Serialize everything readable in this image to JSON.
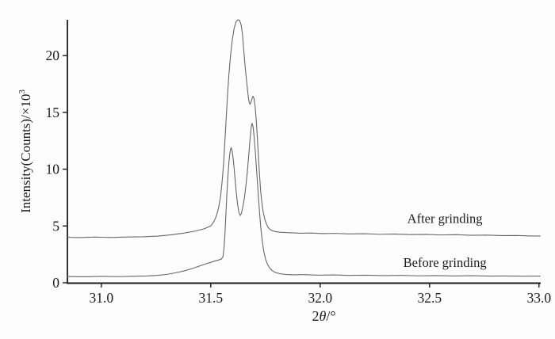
{
  "figure": {
    "background": "#fdfdfd",
    "axis_color": "#1c1c1c",
    "curve_color": "#676767",
    "ylabel_main": "Intensity(Counts)/×10",
    "ylabel_sup": "3",
    "xlabel_parts": [
      {
        "text": "2",
        "italic": false
      },
      {
        "text": "θ",
        "italic": true
      },
      {
        "text": "/°",
        "italic": false
      }
    ]
  },
  "chart_data": {
    "type": "line",
    "title": "",
    "xlabel": "2θ/°",
    "ylabel": "Intensity(Counts)/×10³",
    "xlim": [
      30.845,
      33.008
    ],
    "ylim": [
      0,
      23.15
    ],
    "grid": false,
    "legend_position": "inline-annotations-right",
    "xticks": {
      "values": [
        31.0,
        31.5,
        32.0,
        32.5,
        33.0
      ],
      "labels": [
        "31.0",
        "31.5",
        "32.0",
        "32.5",
        "33.0"
      ]
    },
    "yticks": {
      "values": [
        0,
        5,
        10,
        15,
        20
      ],
      "labels": [
        "0",
        "5",
        "10",
        "15",
        "20"
      ]
    },
    "annotations": [
      {
        "id": "after-grinding-label",
        "text": "After grinding",
        "x": 32.57,
        "y": 5.7
      },
      {
        "id": "before-grinding-label",
        "text": "Before grinding",
        "x": 32.57,
        "y": 1.8
      }
    ],
    "series": [
      {
        "name": "After grinding",
        "baseline": 4.0,
        "peak_summary": {
          "main_peak_2theta": 31.62,
          "main_peak_intensity": 23.15,
          "shoulder_2theta": 31.69,
          "shoulder_intensity": 16.4
        },
        "points": [
          [
            30.845,
            4.0
          ],
          [
            30.9,
            3.98
          ],
          [
            30.97,
            4.02
          ],
          [
            31.05,
            3.99
          ],
          [
            31.12,
            4.03
          ],
          [
            31.19,
            4.05
          ],
          [
            31.26,
            4.11
          ],
          [
            31.32,
            4.22
          ],
          [
            31.38,
            4.38
          ],
          [
            31.43,
            4.55
          ],
          [
            31.47,
            4.75
          ],
          [
            31.5,
            5.0
          ],
          [
            31.515,
            5.4
          ],
          [
            31.527,
            5.95
          ],
          [
            31.537,
            6.7
          ],
          [
            31.545,
            7.6
          ],
          [
            31.552,
            8.9
          ],
          [
            31.559,
            10.5
          ],
          [
            31.565,
            12.6
          ],
          [
            31.571,
            14.6
          ],
          [
            31.577,
            16.6
          ],
          [
            31.583,
            18.3
          ],
          [
            31.59,
            19.9
          ],
          [
            31.598,
            21.3
          ],
          [
            31.607,
            22.4
          ],
          [
            31.616,
            23.0
          ],
          [
            31.624,
            23.15
          ],
          [
            31.632,
            23.1
          ],
          [
            31.639,
            22.7
          ],
          [
            31.645,
            21.9
          ],
          [
            31.65,
            20.7
          ],
          [
            31.655,
            19.5
          ],
          [
            31.661,
            18.3
          ],
          [
            31.667,
            17.2
          ],
          [
            31.672,
            16.3
          ],
          [
            31.676,
            15.85
          ],
          [
            31.68,
            15.72
          ],
          [
            31.685,
            15.95
          ],
          [
            31.69,
            16.3
          ],
          [
            31.694,
            16.42
          ],
          [
            31.698,
            16.2
          ],
          [
            31.703,
            15.5
          ],
          [
            31.708,
            14.3
          ],
          [
            31.713,
            12.8
          ],
          [
            31.718,
            11.1
          ],
          [
            31.723,
            9.5
          ],
          [
            31.728,
            8.1
          ],
          [
            31.734,
            7.0
          ],
          [
            31.74,
            6.2
          ],
          [
            31.747,
            5.6
          ],
          [
            31.755,
            5.15
          ],
          [
            31.763,
            4.85
          ],
          [
            31.772,
            4.68
          ],
          [
            31.783,
            4.57
          ],
          [
            31.797,
            4.5
          ],
          [
            31.815,
            4.45
          ],
          [
            31.84,
            4.42
          ],
          [
            31.87,
            4.4
          ],
          [
            31.91,
            4.36
          ],
          [
            31.96,
            4.38
          ],
          [
            32.01,
            4.33
          ],
          [
            32.07,
            4.35
          ],
          [
            32.13,
            4.3
          ],
          [
            32.2,
            4.32
          ],
          [
            32.27,
            4.27
          ],
          [
            32.34,
            4.29
          ],
          [
            32.41,
            4.24
          ],
          [
            32.48,
            4.26
          ],
          [
            32.55,
            4.21
          ],
          [
            32.62,
            4.23
          ],
          [
            32.69,
            4.18
          ],
          [
            32.76,
            4.2
          ],
          [
            32.83,
            4.15
          ],
          [
            32.9,
            4.16
          ],
          [
            32.96,
            4.12
          ],
          [
            33.005,
            4.12
          ]
        ]
      },
      {
        "name": "Before grinding",
        "baseline": 0.55,
        "peak_summary": {
          "peak1_2theta": 31.59,
          "peak1_intensity": 11.9,
          "valley_2theta": 31.63,
          "valley_intensity": 5.9,
          "peak2_2theta": 31.69,
          "peak2_intensity": 14.05
        },
        "points": [
          [
            30.845,
            0.55
          ],
          [
            30.92,
            0.53
          ],
          [
            31.0,
            0.56
          ],
          [
            31.08,
            0.54
          ],
          [
            31.15,
            0.57
          ],
          [
            31.21,
            0.6
          ],
          [
            31.26,
            0.66
          ],
          [
            31.3,
            0.74
          ],
          [
            31.34,
            0.88
          ],
          [
            31.38,
            1.05
          ],
          [
            31.42,
            1.28
          ],
          [
            31.45,
            1.48
          ],
          [
            31.475,
            1.65
          ],
          [
            31.5,
            1.8
          ],
          [
            31.52,
            1.92
          ],
          [
            31.535,
            2.0
          ],
          [
            31.548,
            2.08
          ],
          [
            31.556,
            2.3
          ],
          [
            31.561,
            3.1
          ],
          [
            31.565,
            4.3
          ],
          [
            31.569,
            5.9
          ],
          [
            31.573,
            7.5
          ],
          [
            31.578,
            9.2
          ],
          [
            31.583,
            10.6
          ],
          [
            31.588,
            11.5
          ],
          [
            31.593,
            11.9
          ],
          [
            31.598,
            11.6
          ],
          [
            31.604,
            10.7
          ],
          [
            31.61,
            9.4
          ],
          [
            31.616,
            8.1
          ],
          [
            31.622,
            7.0
          ],
          [
            31.628,
            6.25
          ],
          [
            31.634,
            5.92
          ],
          [
            31.64,
            6.1
          ],
          [
            31.647,
            6.7
          ],
          [
            31.654,
            7.5
          ],
          [
            31.661,
            8.6
          ],
          [
            31.668,
            9.9
          ],
          [
            31.674,
            11.3
          ],
          [
            31.68,
            12.7
          ],
          [
            31.685,
            13.7
          ],
          [
            31.689,
            14.05
          ],
          [
            31.694,
            13.7
          ],
          [
            31.699,
            12.7
          ],
          [
            31.705,
            11.2
          ],
          [
            31.711,
            9.5
          ],
          [
            31.717,
            7.8
          ],
          [
            31.723,
            6.2
          ],
          [
            31.729,
            4.8
          ],
          [
            31.736,
            3.6
          ],
          [
            31.743,
            2.7
          ],
          [
            31.751,
            2.05
          ],
          [
            31.76,
            1.6
          ],
          [
            31.77,
            1.28
          ],
          [
            31.782,
            1.05
          ],
          [
            31.796,
            0.9
          ],
          [
            31.815,
            0.8
          ],
          [
            31.84,
            0.74
          ],
          [
            31.88,
            0.7
          ],
          [
            31.93,
            0.72
          ],
          [
            31.99,
            0.67
          ],
          [
            32.06,
            0.69
          ],
          [
            32.13,
            0.65
          ],
          [
            32.21,
            0.67
          ],
          [
            32.29,
            0.63
          ],
          [
            32.37,
            0.65
          ],
          [
            32.45,
            0.61
          ],
          [
            32.53,
            0.63
          ],
          [
            32.61,
            0.6
          ],
          [
            32.69,
            0.62
          ],
          [
            32.77,
            0.59
          ],
          [
            32.85,
            0.6
          ],
          [
            32.92,
            0.58
          ],
          [
            33.005,
            0.59
          ]
        ]
      }
    ]
  }
}
